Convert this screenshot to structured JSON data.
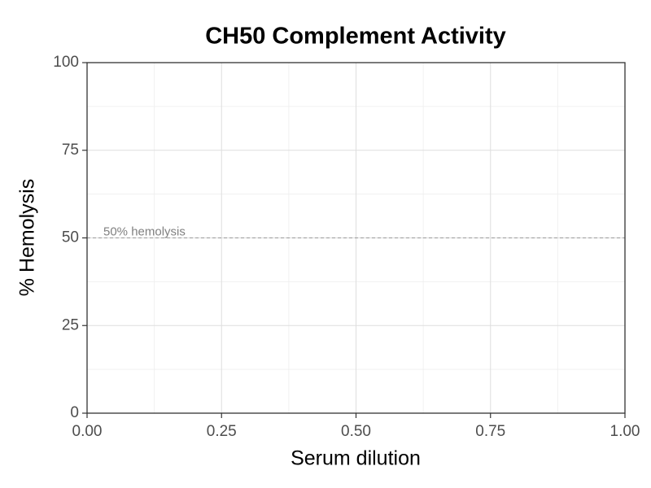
{
  "chart_data": {
    "type": "line",
    "title": "CH50 Complement Activity",
    "xlabel": "Serum dilution",
    "ylabel": "% Hemolysis",
    "series": [],
    "xlim": [
      0,
      1
    ],
    "xticks": [
      {
        "value": 0,
        "label": "0.00"
      },
      0.25,
      {
        "value": 0.5,
        "label": "0.50"
      },
      0.75,
      {
        "value": 1,
        "label": "1.00"
      }
    ],
    "ylim": [
      0,
      100
    ],
    "yticks": [
      0,
      25,
      50,
      75,
      100
    ],
    "grid": true,
    "hline": {
      "value": 50,
      "label": "50% hemolysis",
      "color": "#999999"
    }
  }
}
